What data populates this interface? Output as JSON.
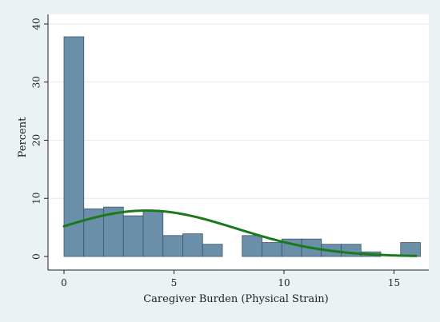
{
  "chart_data": {
    "type": "bar",
    "title": "",
    "xlabel": "Caregiver Burden (Physical Strain)",
    "ylabel": "Percent",
    "xlim": [
      -1,
      16.2
    ],
    "ylim": [
      0,
      40
    ],
    "xticks": [
      0,
      5,
      10,
      15
    ],
    "yticks": [
      0,
      10,
      20,
      30,
      40
    ],
    "grid": "horizontal",
    "bin_width": 0.9,
    "bins": [
      {
        "start": 0.0,
        "value": 37.8
      },
      {
        "start": 0.9,
        "value": 8.2
      },
      {
        "start": 1.8,
        "value": 8.5
      },
      {
        "start": 2.7,
        "value": 7.0
      },
      {
        "start": 3.6,
        "value": 7.8
      },
      {
        "start": 4.5,
        "value": 3.6
      },
      {
        "start": 5.4,
        "value": 3.9
      },
      {
        "start": 6.3,
        "value": 2.1
      },
      {
        "start": 7.2,
        "value": 0
      },
      {
        "start": 8.1,
        "value": 3.6
      },
      {
        "start": 9.0,
        "value": 2.4
      },
      {
        "start": 9.9,
        "value": 3.0
      },
      {
        "start": 10.8,
        "value": 3.0
      },
      {
        "start": 11.7,
        "value": 2.1
      },
      {
        "start": 12.6,
        "value": 2.1
      },
      {
        "start": 13.5,
        "value": 0.8
      },
      {
        "start": 14.4,
        "value": 0
      },
      {
        "start": 15.3,
        "value": 2.4
      }
    ],
    "overlay": {
      "type": "normal-density",
      "mean": 3.75,
      "sd": 4.1,
      "peak_percent": 7.9,
      "color": "#1a7a1a"
    },
    "colors": {
      "bar_fill": "#6b8fa8",
      "bar_stroke": "#3a5568",
      "plot_bg": "#ffffff",
      "outer_bg": "#eaf2f3",
      "grid": "#e4ebee"
    }
  }
}
